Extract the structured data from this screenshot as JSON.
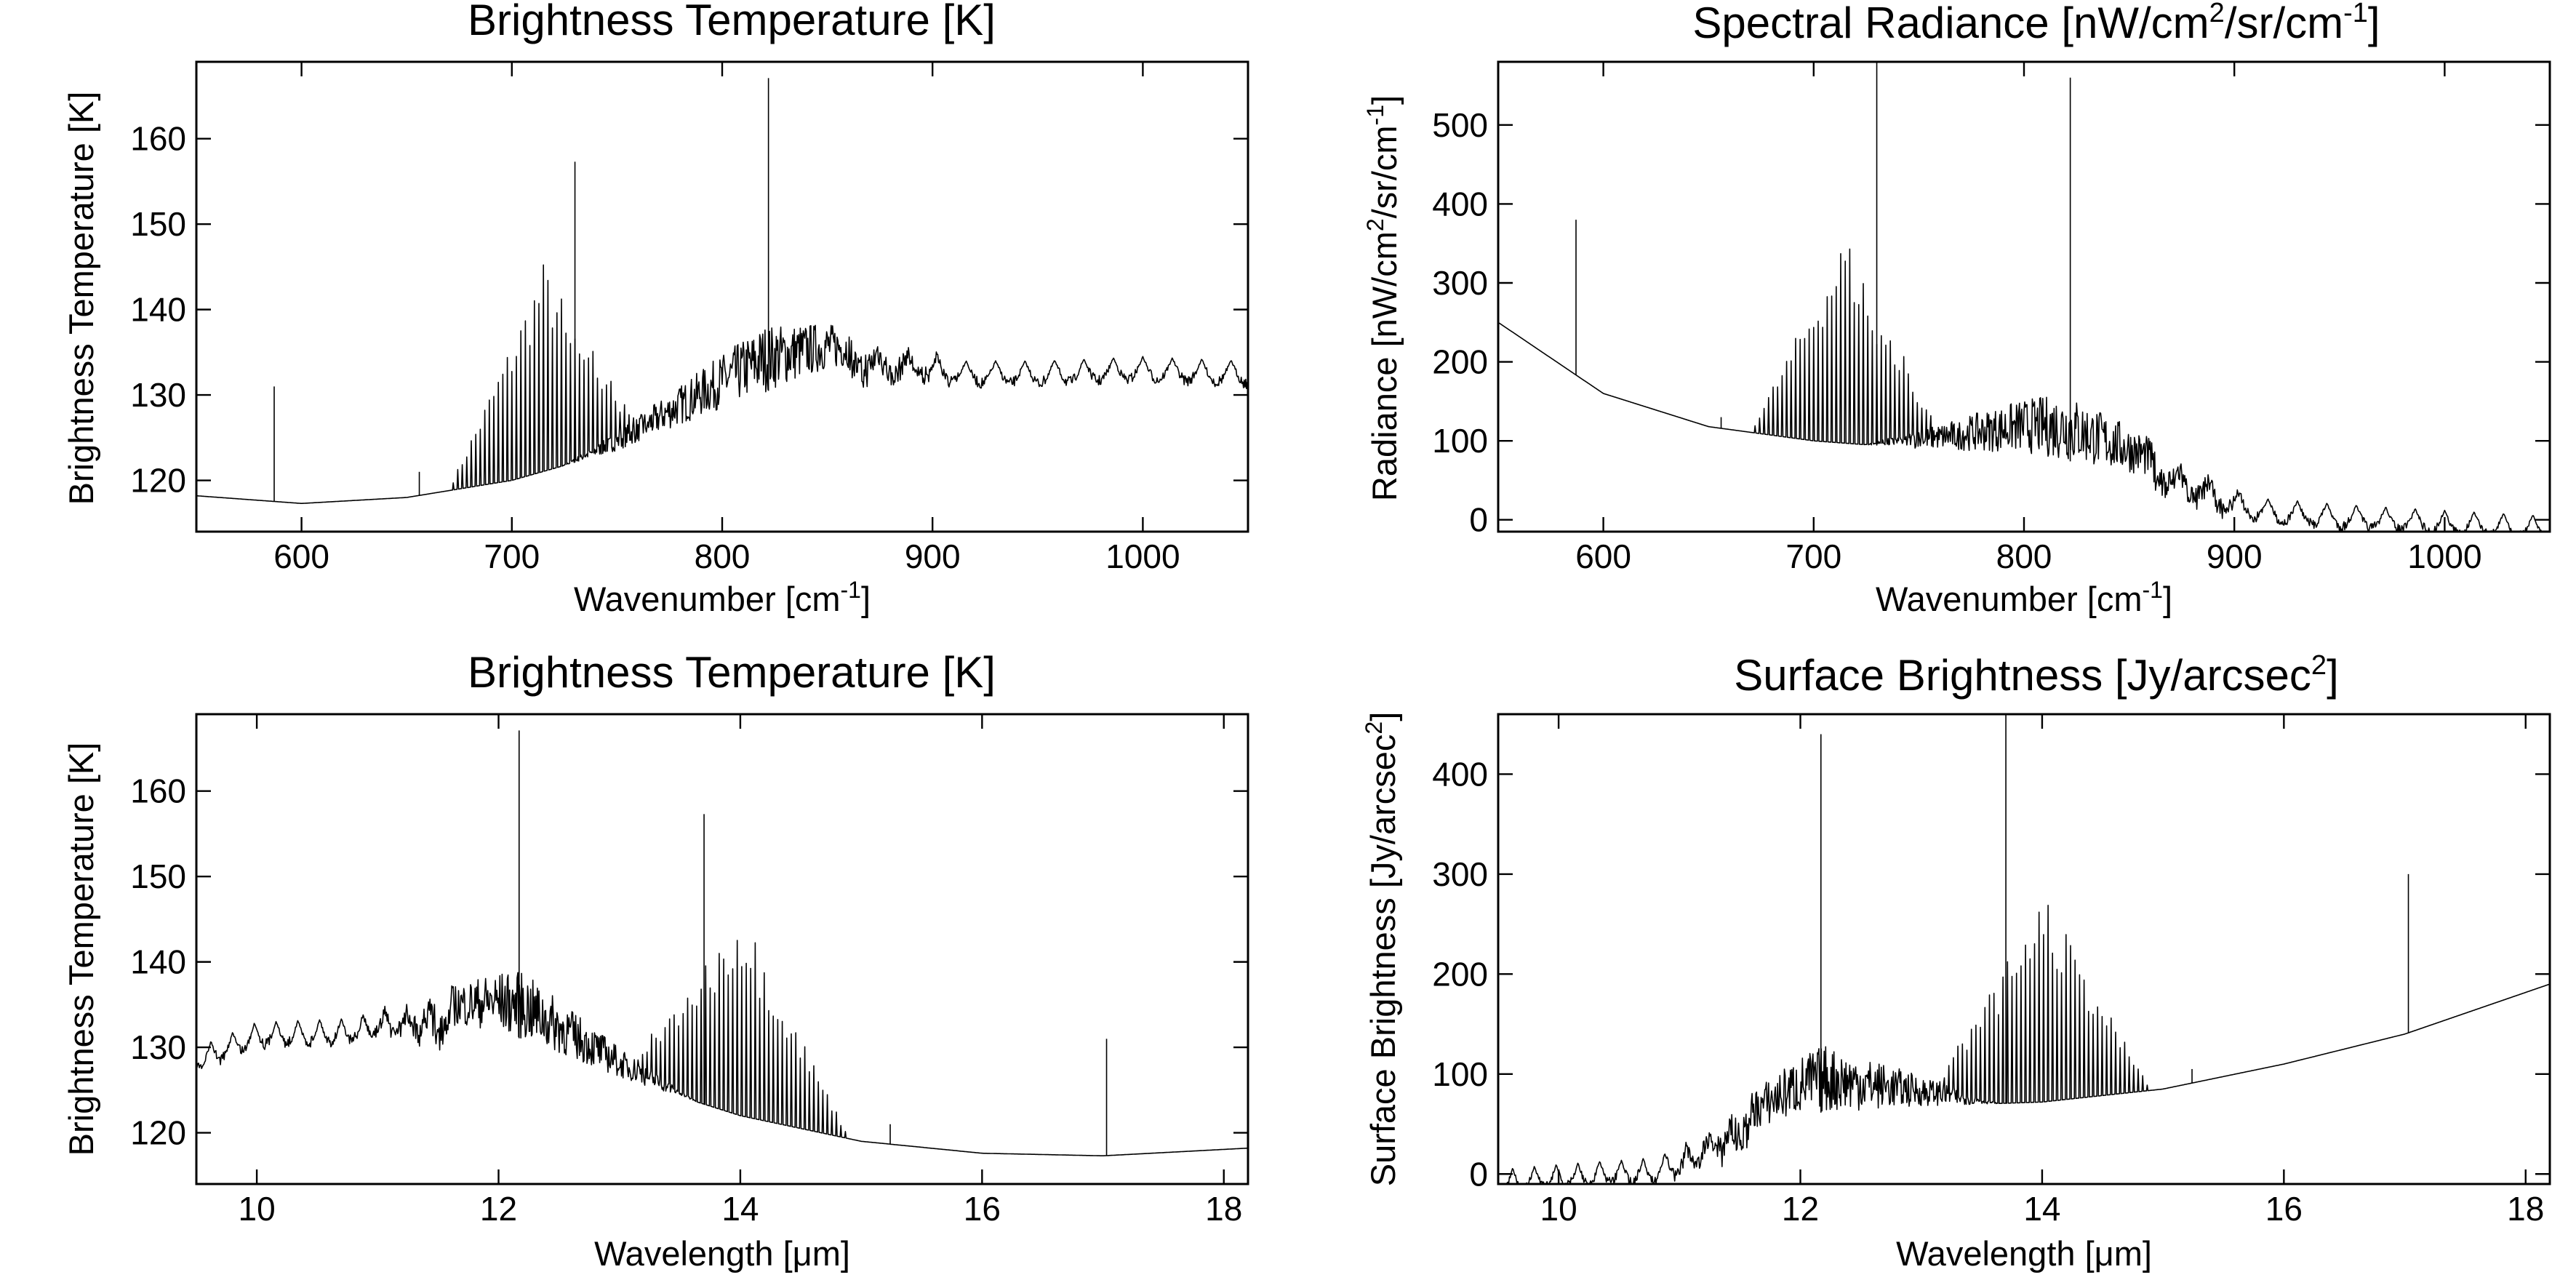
{
  "chart_data": [
    {
      "type": "line",
      "title": "Brightness Temperature [K]",
      "xlabel": "Wavenumber [cm-1]",
      "ylabel": "Brightness Temperature [K]",
      "xlim": [
        550,
        1050
      ],
      "ylim": [
        114,
        169
      ],
      "xticks": [
        600,
        700,
        800,
        900,
        1000
      ],
      "yticks": [
        120,
        130,
        140,
        150,
        160
      ],
      "x_tick_labels": [
        "600",
        "700",
        "800",
        "900",
        "1000"
      ],
      "y_tick_labels": [
        "120",
        "130",
        "140",
        "150",
        "160"
      ],
      "x": [
        550,
        600,
        650,
        700,
        750,
        800,
        850,
        900,
        950,
        1000,
        1050
      ],
      "baseline": [
        118.2,
        117.3,
        118.0,
        120.0,
        123.5,
        128.5,
        133.0,
        134.0,
        134.0,
        134.5,
        134.0
      ],
      "emission_lines": [
        {
          "x": 587,
          "y": 131.0
        },
        {
          "x": 656,
          "y": 121.0
        },
        {
          "x": 730,
          "y": 157.3
        },
        {
          "x": 822,
          "y": 167.1
        }
      ]
    },
    {
      "type": "line",
      "title": "Spectral Radiance [nW/cm2/sr/cm-1]",
      "xlabel": "Wavenumber [cm-1]",
      "ylabel": "Radiance [nW/cm2/sr/cm-1]",
      "xlim": [
        550,
        1050
      ],
      "ylim": [
        -15,
        580
      ],
      "xticks": [
        600,
        700,
        800,
        900,
        1000
      ],
      "yticks": [
        0,
        100,
        200,
        300,
        400,
        500
      ],
      "x_tick_labels": [
        "600",
        "700",
        "800",
        "900",
        "1000"
      ],
      "y_tick_labels": [
        "0",
        "100",
        "200",
        "300",
        "400",
        "500"
      ],
      "x": [
        550,
        600,
        650,
        700,
        750,
        800,
        850,
        900,
        950,
        1000,
        1050
      ],
      "baseline": [
        250,
        160,
        118,
        100,
        90,
        85,
        60,
        30,
        20,
        12,
        5
      ],
      "emission_lines": [
        {
          "x": 587,
          "y": 380
        },
        {
          "x": 656,
          "y": 130
        },
        {
          "x": 730,
          "y": 580
        },
        {
          "x": 822,
          "y": 560
        }
      ]
    },
    {
      "type": "line",
      "title": "Brightness Temperature [K]",
      "xlabel": "Wavelength [μm]",
      "ylabel": "Brightness Temperature [K]",
      "xlim": [
        9.5,
        18.2
      ],
      "ylim": [
        114,
        169
      ],
      "xticks": [
        10,
        12,
        14,
        16,
        18
      ],
      "yticks": [
        120,
        130,
        140,
        150,
        160
      ],
      "x_tick_labels": [
        "10",
        "12",
        "14",
        "16",
        "18"
      ],
      "y_tick_labels": [
        "120",
        "130",
        "140",
        "150",
        "160"
      ],
      "x": [
        9.5,
        10.0,
        11.0,
        12.0,
        13.0,
        14.0,
        15.0,
        16.0,
        17.0,
        18.2
      ],
      "baseline": [
        130.0,
        133.0,
        133.5,
        132.0,
        126.5,
        122.0,
        119.0,
        117.6,
        117.3,
        118.2
      ],
      "emission_lines": [
        {
          "x": 12.17,
          "y": 167.1
        },
        {
          "x": 13.7,
          "y": 157.3
        },
        {
          "x": 15.24,
          "y": 121.0
        },
        {
          "x": 17.03,
          "y": 131.0
        }
      ]
    },
    {
      "type": "line",
      "title": "Surface Brightness [Jy/arcsec2]",
      "xlabel": "Wavelength [μm]",
      "ylabel": "Surface Brightness [Jy/arcsec2]",
      "xlim": [
        9.5,
        18.2
      ],
      "ylim": [
        -10,
        460
      ],
      "xticks": [
        10,
        12,
        14,
        16,
        18
      ],
      "yticks": [
        0,
        100,
        200,
        300,
        400
      ],
      "x_tick_labels": [
        "10",
        "12",
        "14",
        "16",
        "18"
      ],
      "y_tick_labels": [
        "0",
        "100",
        "200",
        "300",
        "400"
      ],
      "x": [
        9.5,
        10.0,
        11.0,
        12.0,
        13.0,
        14.0,
        15.0,
        16.0,
        17.0,
        18.2
      ],
      "baseline": [
        5,
        10,
        18,
        60,
        68,
        72,
        85,
        110,
        140,
        190
      ],
      "emission_lines": [
        {
          "x": 12.17,
          "y": 440
        },
        {
          "x": 13.7,
          "y": 460
        },
        {
          "x": 15.24,
          "y": 105
        },
        {
          "x": 17.03,
          "y": 300
        }
      ]
    }
  ]
}
